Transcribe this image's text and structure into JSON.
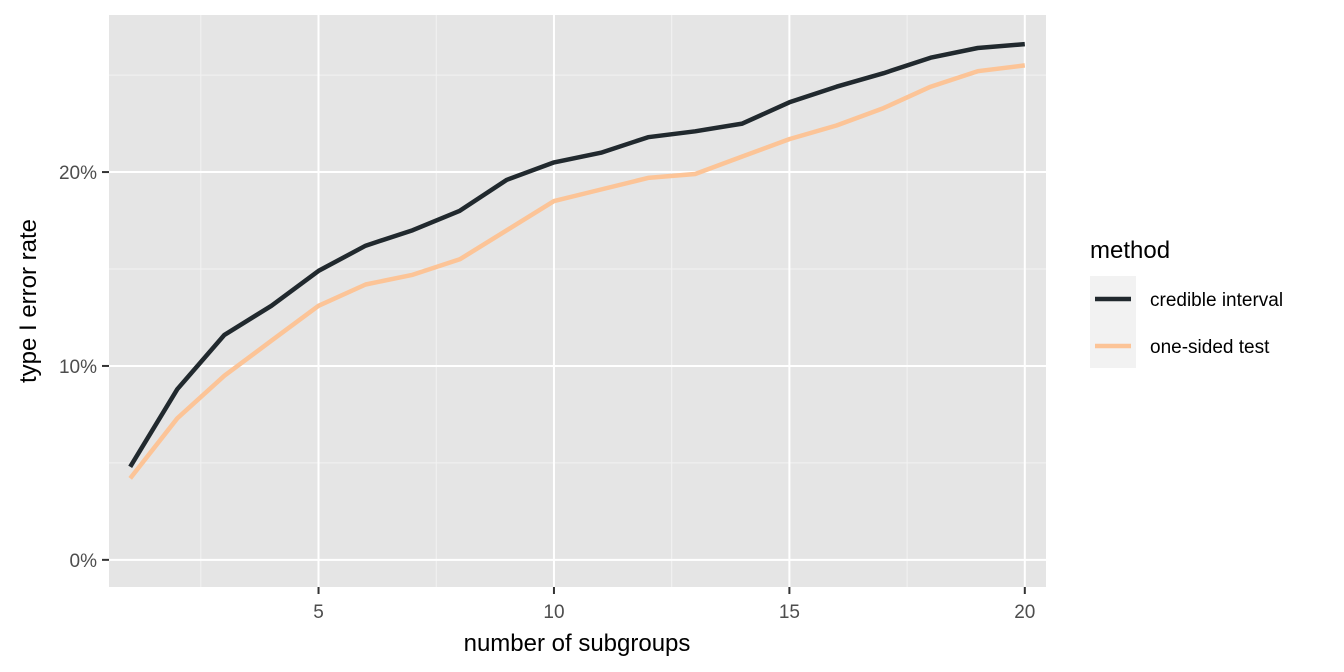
{
  "chart_data": {
    "type": "line",
    "xlabel": "number of subgroups",
    "ylabel": "type I error rate",
    "xlim": [
      0.55,
      20.45
    ],
    "ylim": [
      -0.014,
      0.281
    ],
    "x_ticks": [
      5,
      10,
      15,
      20
    ],
    "y_ticks": [
      0,
      0.1,
      0.2
    ],
    "y_tick_labels": [
      "0%",
      "10%",
      "20%"
    ],
    "grid": true,
    "legend": {
      "title": "method",
      "position": "right"
    },
    "x": [
      1,
      2,
      3,
      4,
      5,
      6,
      7,
      8,
      9,
      10,
      11,
      12,
      13,
      14,
      15,
      16,
      17,
      18,
      19,
      20
    ],
    "series": [
      {
        "name": "credible interval",
        "color": "#21292e",
        "values": [
          0.048,
          0.088,
          0.116,
          0.131,
          0.149,
          0.162,
          0.17,
          0.18,
          0.196,
          0.205,
          0.21,
          0.218,
          0.221,
          0.225,
          0.236,
          0.244,
          0.251,
          0.259,
          0.264,
          0.266
        ]
      },
      {
        "name": "one-sided test",
        "color": "#fcc497",
        "values": [
          0.042,
          0.073,
          0.095,
          0.113,
          0.131,
          0.142,
          0.147,
          0.155,
          0.17,
          0.185,
          0.191,
          0.197,
          0.199,
          0.208,
          0.217,
          0.224,
          0.233,
          0.244,
          0.252,
          0.255
        ]
      }
    ]
  }
}
